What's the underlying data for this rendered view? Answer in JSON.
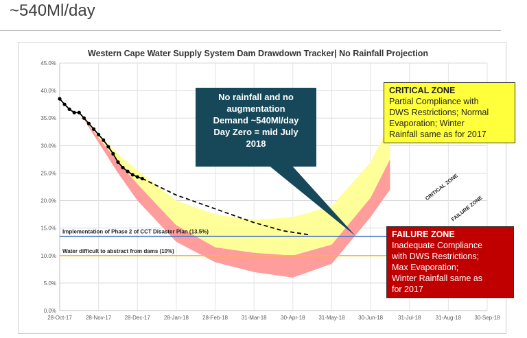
{
  "slide": {
    "title": "~540Ml/day"
  },
  "chart_data": {
    "type": "line",
    "title": "Western Cape Water Supply System Dam Drawdown Tracker| No Rainfall Projection",
    "x_ticks": [
      "28-Oct-17",
      "28-Nov-17",
      "28-Dec-17",
      "28-Jan-18",
      "28-Feb-18",
      "31-Mar-18",
      "30-Apr-18",
      "31-May-18",
      "30-Jun-18",
      "31-Jul-18",
      "31-Aug-18",
      "30-Sep-18"
    ],
    "y_ticks": [
      "0.0%",
      "5.0%",
      "10.0%",
      "15.0%",
      "20.0%",
      "25.0%",
      "30.0%",
      "35.0%",
      "40.0%",
      "45.0%"
    ],
    "ylim": [
      0,
      45
    ],
    "grid": "horizontal and vertical",
    "series": [
      {
        "kind": "observed",
        "color": "#000000",
        "points": [
          [
            0,
            38.5
          ],
          [
            0.125,
            37.5
          ],
          [
            0.25,
            36.6
          ],
          [
            0.375,
            36.0
          ],
          [
            0.5,
            36.0
          ],
          [
            0.625,
            35.0
          ],
          [
            0.75,
            34.0
          ],
          [
            0.875,
            33.0
          ],
          [
            1.0,
            32.0
          ],
          [
            1.125,
            31.0
          ],
          [
            1.25,
            29.8
          ],
          [
            1.375,
            28.5
          ],
          [
            1.5,
            27.0
          ],
          [
            1.625,
            26.0
          ],
          [
            1.75,
            25.3
          ],
          [
            1.875,
            24.7
          ],
          [
            2.0,
            24.3
          ],
          [
            2.125,
            24.0
          ]
        ]
      },
      {
        "kind": "projection",
        "color": "#000000",
        "points": [
          [
            2.125,
            24.0
          ],
          [
            3.0,
            21.0
          ],
          [
            4.0,
            18.5
          ],
          [
            5.0,
            16.0
          ],
          [
            5.75,
            14.5
          ],
          [
            6.4,
            13.8
          ]
        ]
      }
    ],
    "bands": [
      {
        "name": "CRITICAL ZONE",
        "color": "#ffff99",
        "upper": [
          [
            0.6,
            35.0
          ],
          [
            1.5,
            28.5
          ],
          [
            2.0,
            25.5
          ],
          [
            3.0,
            20.0
          ],
          [
            4.0,
            17.5
          ],
          [
            5.0,
            16.5
          ],
          [
            6.0,
            17.0
          ],
          [
            7.0,
            19.0
          ],
          [
            8.0,
            27.0
          ],
          [
            8.5,
            34.0
          ]
        ],
        "lower": [
          [
            0.6,
            35.0
          ],
          [
            1.5,
            27.0
          ],
          [
            2.0,
            23.0
          ],
          [
            3.0,
            15.5
          ],
          [
            4.0,
            11.5
          ],
          [
            5.0,
            10.5
          ],
          [
            6.0,
            10.0
          ],
          [
            7.0,
            12.0
          ],
          [
            8.0,
            20.5
          ],
          [
            8.5,
            27.5
          ]
        ]
      },
      {
        "name": "FAILURE ZONE",
        "color": "#ff9c9c",
        "upper": [
          [
            0.6,
            35.0
          ],
          [
            1.5,
            27.0
          ],
          [
            2.0,
            23.0
          ],
          [
            3.0,
            15.5
          ],
          [
            4.0,
            11.5
          ],
          [
            5.0,
            10.5
          ],
          [
            6.0,
            10.0
          ],
          [
            7.0,
            12.0
          ],
          [
            8.0,
            20.5
          ],
          [
            8.5,
            27.5
          ]
        ],
        "lower": [
          [
            0.6,
            35.0
          ],
          [
            1.5,
            25.0
          ],
          [
            2.0,
            20.0
          ],
          [
            3.0,
            12.5
          ],
          [
            4.0,
            8.8
          ],
          [
            5.0,
            7.0
          ],
          [
            6.0,
            6.0
          ],
          [
            7.0,
            8.5
          ],
          [
            8.0,
            17.0
          ],
          [
            8.5,
            22.0
          ]
        ]
      }
    ],
    "reference_lines": [
      {
        "label": "Implementation of Phase 2 of CCT Disaster Plan (13.5%)",
        "value": 13.5,
        "color": "#4472c4"
      },
      {
        "label": "Water difficult to abstract from dams (10%)",
        "value": 10,
        "color": "#ffc000"
      }
    ],
    "zone_labels": {
      "critical": "CRITICAL ZONE",
      "failure": "FAILURE ZONE"
    },
    "annotations": {
      "center": {
        "lines": [
          "No rainfall and no",
          "augmentation",
          "Demand ~540Ml/day",
          "Day Zero = mid July",
          "2018"
        ],
        "color": "#17485a"
      },
      "critical_box": {
        "head": "CRITICAL ZONE",
        "lines": [
          "Partial Compliance with",
          "DWS Restrictions; Normal",
          "Evaporation; Winter",
          "Rainfall same as for 2017"
        ],
        "color": "#ffff3c"
      },
      "failure_box": {
        "head": "FAILURE ZONE",
        "lines": [
          "Inadequate Compliance",
          "with DWS Restrictions;",
          "Max Evaporation;",
          "Winter Rainfall same as",
          "for 2017"
        ],
        "color": "#c00000"
      }
    }
  }
}
